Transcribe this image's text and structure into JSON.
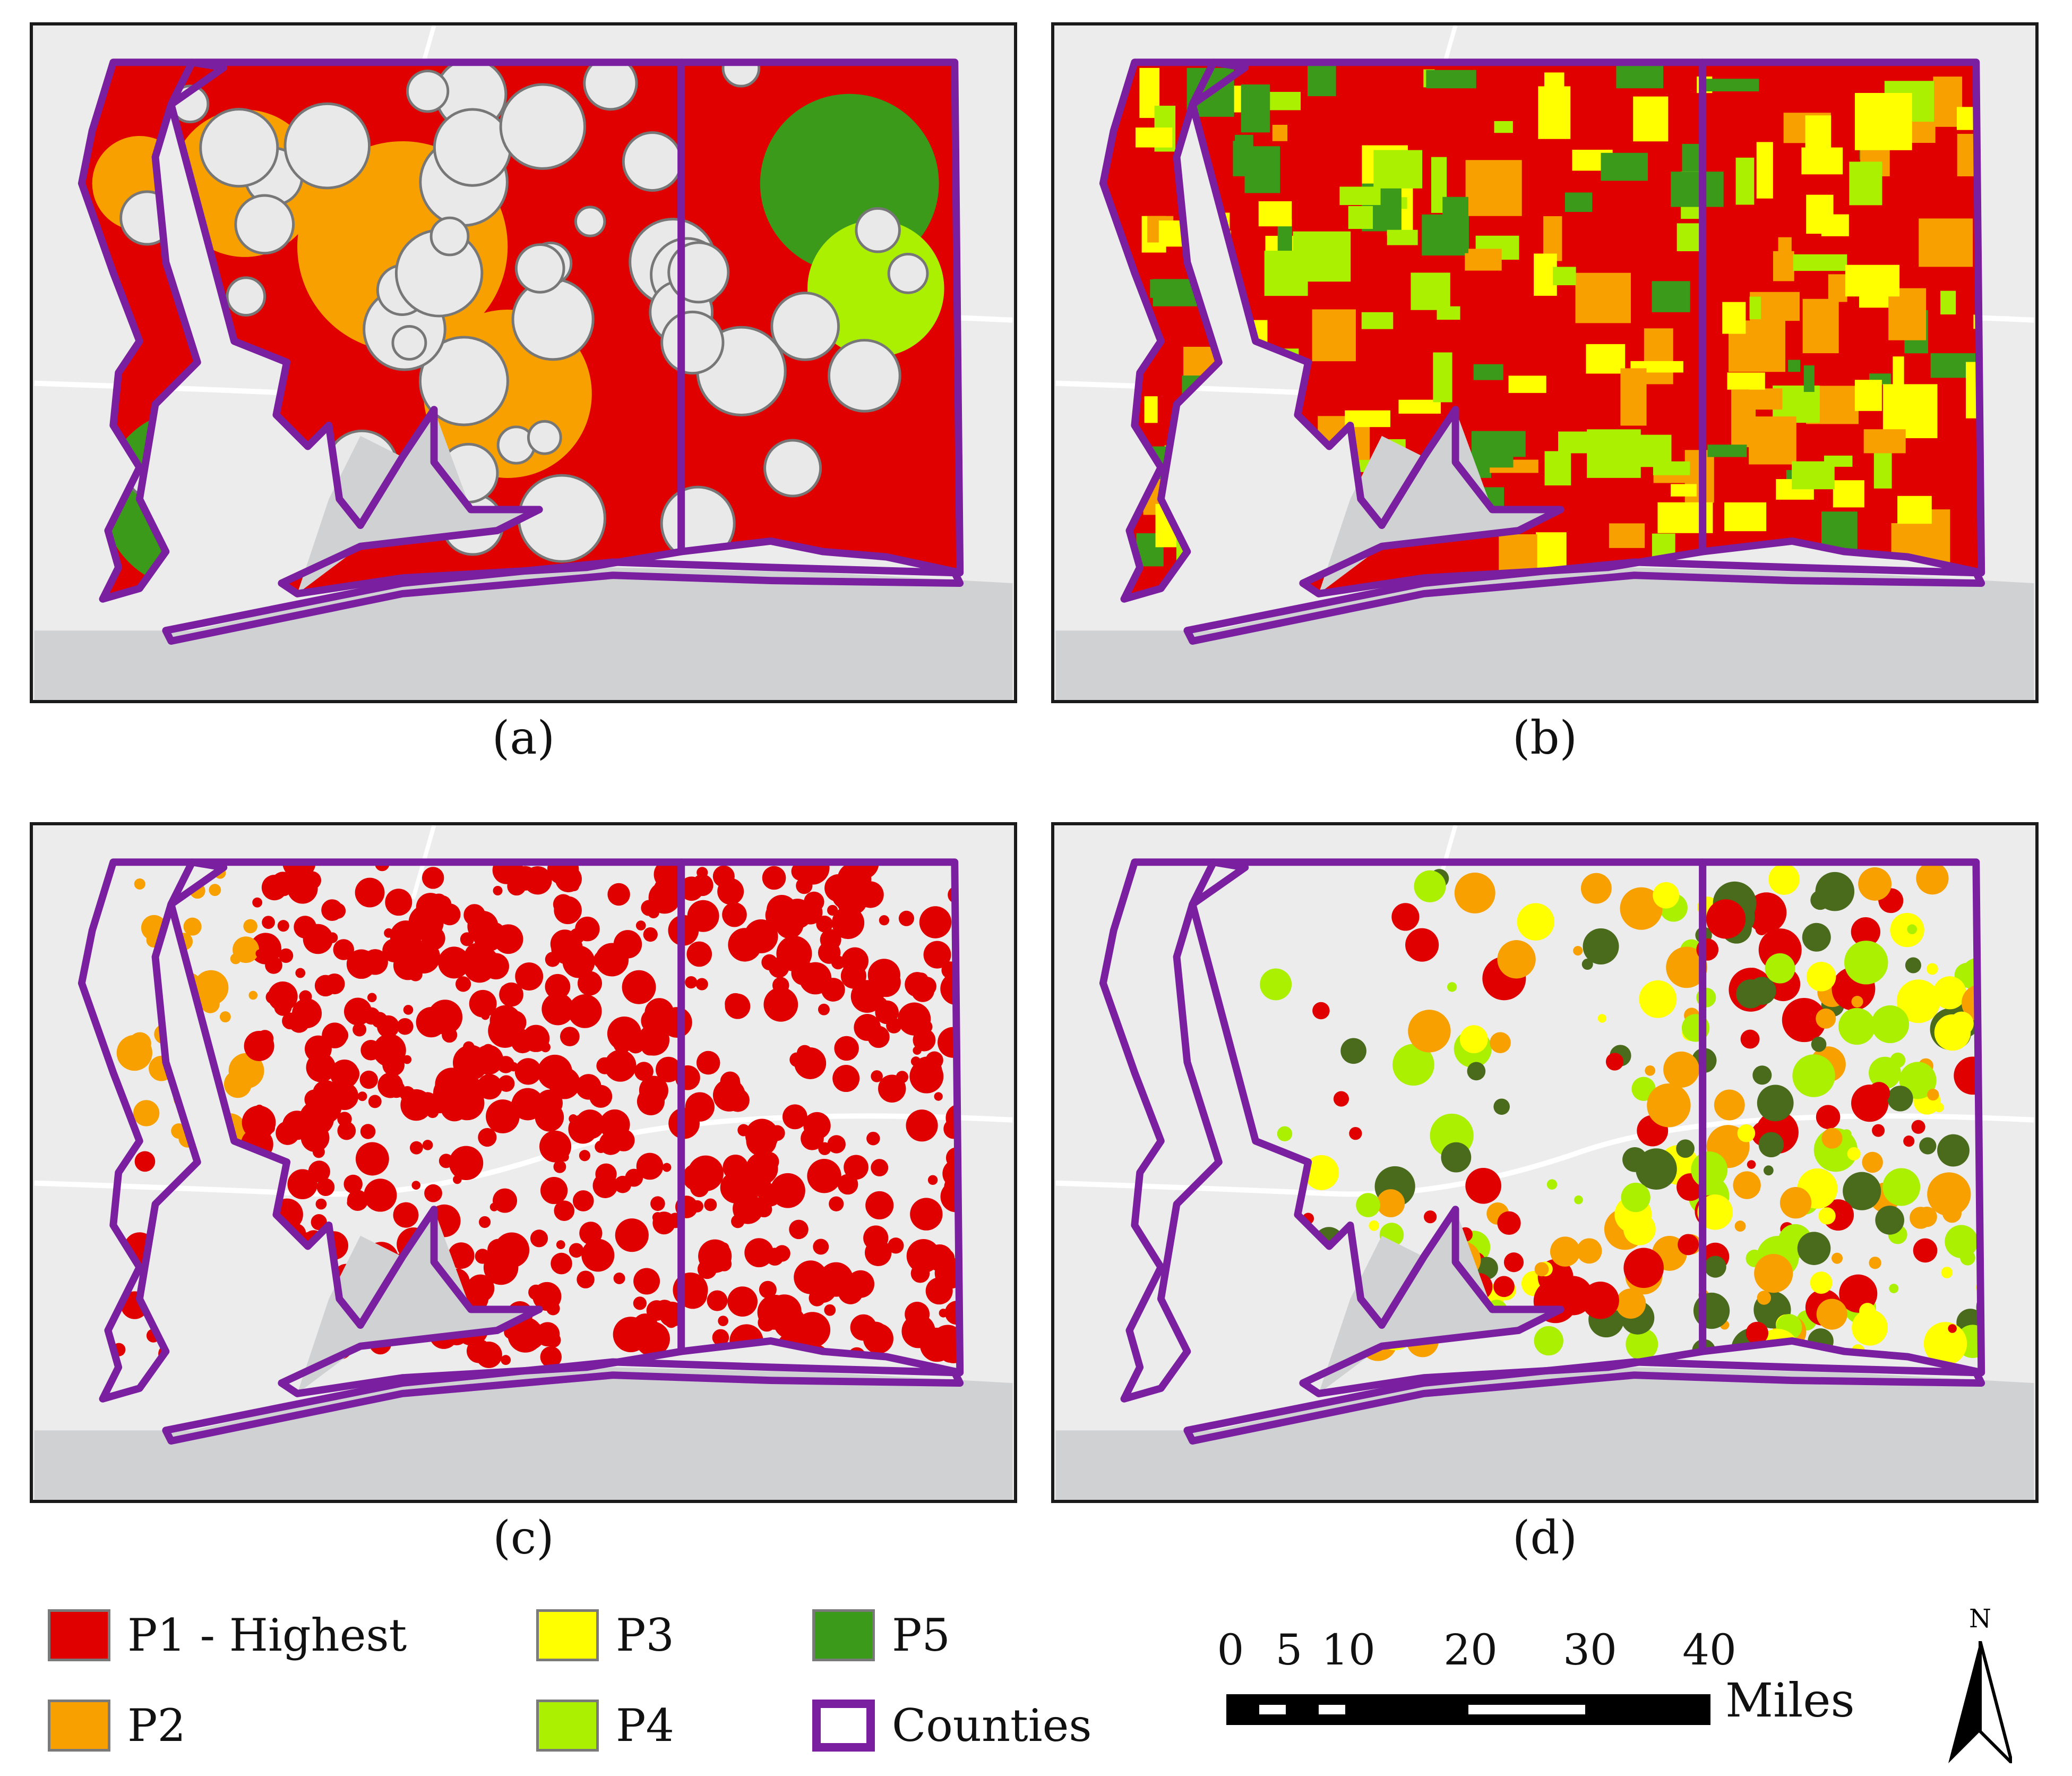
{
  "panels": [
    {
      "id": "a",
      "label": "(a)",
      "palette": [
        "#e00000",
        "#f7a000",
        "#3c9a1b",
        "#aaf000"
      ]
    },
    {
      "id": "b",
      "label": "(b)",
      "palette": [
        "#e00000",
        "#ffff00",
        "#aaf000",
        "#f7a000",
        "#3c9a1b"
      ]
    },
    {
      "id": "c",
      "label": "(c)",
      "palette": [
        "#e00000",
        "#f7a000"
      ]
    },
    {
      "id": "d",
      "label": "(d)",
      "palette": [
        "#e00000",
        "#ffff00",
        "#f7a000",
        "#aaf000",
        "#4a6a1c"
      ]
    }
  ],
  "legend": [
    {
      "label": "P1 - Highest",
      "color": "#e00000"
    },
    {
      "label": "P3",
      "color": "#ffff00"
    },
    {
      "label": "P5",
      "color": "#3c9a1b"
    },
    {
      "label": "P2",
      "color": "#f7a000"
    },
    {
      "label": "P4",
      "color": "#aaf000"
    },
    {
      "label": "Counties",
      "color": "#7a1fa0"
    }
  ],
  "scale_bar": {
    "ticks": [
      "0",
      "5",
      "10",
      "20",
      "30",
      "40"
    ],
    "tick_values": [
      0,
      5,
      10,
      20,
      30,
      40
    ],
    "unit": "Miles"
  },
  "north_arrow": {
    "label": "N"
  },
  "colors": {
    "county_outline": "#7a1fa0",
    "water": "#cfd1d3",
    "land": "#ececec",
    "roads": "#ffffff"
  }
}
